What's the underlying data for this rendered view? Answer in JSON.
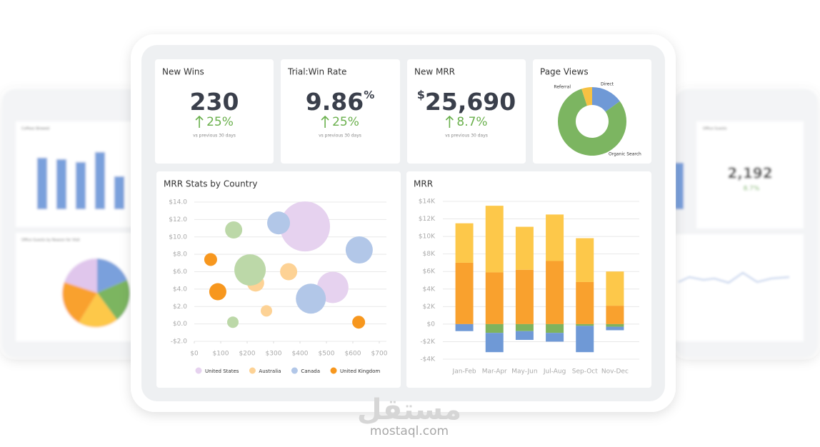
{
  "background": {
    "left_titles": [
      "Coffees Brewed",
      "Office Guests by Reason for Visit"
    ],
    "right_title": "Office Guests",
    "right_value": "2,192",
    "right_change": "8.7%"
  },
  "kpis": [
    {
      "title": "New Wins",
      "value": "230",
      "change": "25%",
      "note": "vs previous 30 days"
    },
    {
      "title": "Trial:Win Rate",
      "value": "9.86",
      "suffix": "%",
      "change": "25%",
      "note": "vs previous 30 days"
    },
    {
      "title": "New MRR",
      "prefix": "$",
      "value": "25,690",
      "change": "8.7%",
      "note": "vs previous 30 days"
    }
  ],
  "chart_data": [
    {
      "type": "pie",
      "title": "Page Views",
      "donut": true,
      "labels": [
        "Direct",
        "Organic Search",
        "Referral"
      ],
      "values": [
        15,
        80,
        5
      ],
      "colors": [
        "#6f99d6",
        "#7cb561",
        "#f6c143"
      ]
    },
    {
      "type": "scatter",
      "title": "MRR Stats by Country",
      "xlim": [
        0,
        700
      ],
      "xticks": [
        {
          "value": 0,
          "label": "$0"
        },
        {
          "value": 100,
          "label": "$100"
        },
        {
          "value": 200,
          "label": "$200"
        },
        {
          "value": 300,
          "label": "$300"
        },
        {
          "value": 400,
          "label": "$400"
        },
        {
          "value": 500,
          "label": "$500"
        },
        {
          "value": 600,
          "label": "$600"
        },
        {
          "value": 700,
          "label": "$700"
        }
      ],
      "ylim": [
        -2,
        14
      ],
      "yticks": [
        {
          "value": 14,
          "label": "$14.0"
        },
        {
          "value": 12,
          "label": "$12.0"
        },
        {
          "value": 10,
          "label": "$10.0"
        },
        {
          "value": 8,
          "label": "$8.0"
        },
        {
          "value": 6,
          "label": "$6.0"
        },
        {
          "value": 4,
          "label": "$4.0"
        },
        {
          "value": 2,
          "label": "$2.0"
        },
        {
          "value": 0,
          "label": "$0.0"
        },
        {
          "value": -2,
          "label": "-$2.0"
        }
      ],
      "grid": true,
      "series": [
        {
          "name": "United States",
          "color": "#e6d2ef",
          "x": [
            419,
            524
          ],
          "values": [
            11.2,
            4.2
          ],
          "sizes": [
            35,
            22
          ]
        },
        {
          "name": "Australia",
          "color": "#fdd295",
          "x": [
            357,
            232,
            273
          ],
          "values": [
            6.0,
            4.7,
            1.5
          ],
          "sizes": [
            12,
            12,
            8
          ]
        },
        {
          "name": "Canada",
          "color": "#b2c7e8",
          "x": [
            319,
            624,
            441
          ],
          "values": [
            11.6,
            8.5,
            2.9
          ],
          "sizes": [
            16,
            19,
            21
          ]
        },
        {
          "name": "United Kingdom",
          "color": "#f7971e",
          "x": [
            62,
            89,
            622
          ],
          "values": [
            7.4,
            3.7,
            0.2
          ],
          "sizes": [
            9,
            12,
            9
          ]
        },
        {
          "color": "#bcd8a8",
          "x": [
            149,
            211,
            146
          ],
          "values": [
            10.8,
            6.2,
            0.2
          ],
          "sizes": [
            12,
            22,
            8
          ]
        }
      ]
    },
    {
      "type": "bar",
      "stacked": true,
      "title": "MRR",
      "categories": [
        "Jan-Feb",
        "Mar-Apr",
        "May-Jun",
        "Jul-Aug",
        "Sep-Oct",
        "Nov-Dec"
      ],
      "ylim": [
        -4000,
        14000
      ],
      "yticks": [
        {
          "value": 14000,
          "label": "$14K"
        },
        {
          "value": 12000,
          "label": "$12K"
        },
        {
          "value": 10000,
          "label": "$10K"
        },
        {
          "value": 8000,
          "label": "$8K"
        },
        {
          "value": 6000,
          "label": "$6K"
        },
        {
          "value": 4000,
          "label": "$4K"
        },
        {
          "value": 2000,
          "label": "$2K"
        },
        {
          "value": 0,
          "label": "$0"
        },
        {
          "value": -2000,
          "label": "-$2K"
        },
        {
          "value": -4000,
          "label": "-$4K"
        }
      ],
      "grid": true,
      "series": [
        {
          "color": "#f9a12e",
          "values": [
            7000,
            5900,
            6200,
            7200,
            4800,
            2100
          ]
        },
        {
          "color": "#fdc84a",
          "values": [
            4500,
            7600,
            4900,
            5300,
            5000,
            3900
          ]
        },
        {
          "color": "#7fb35e",
          "values": [
            0,
            -1000,
            -800,
            -1000,
            -200,
            -300
          ]
        },
        {
          "color": "#6f99d6",
          "values": [
            -800,
            -2200,
            -1000,
            -1000,
            -3000,
            -400
          ]
        }
      ]
    }
  ],
  "watermark": {
    "arabic": "مستقل",
    "latin": "mostaql.com"
  }
}
